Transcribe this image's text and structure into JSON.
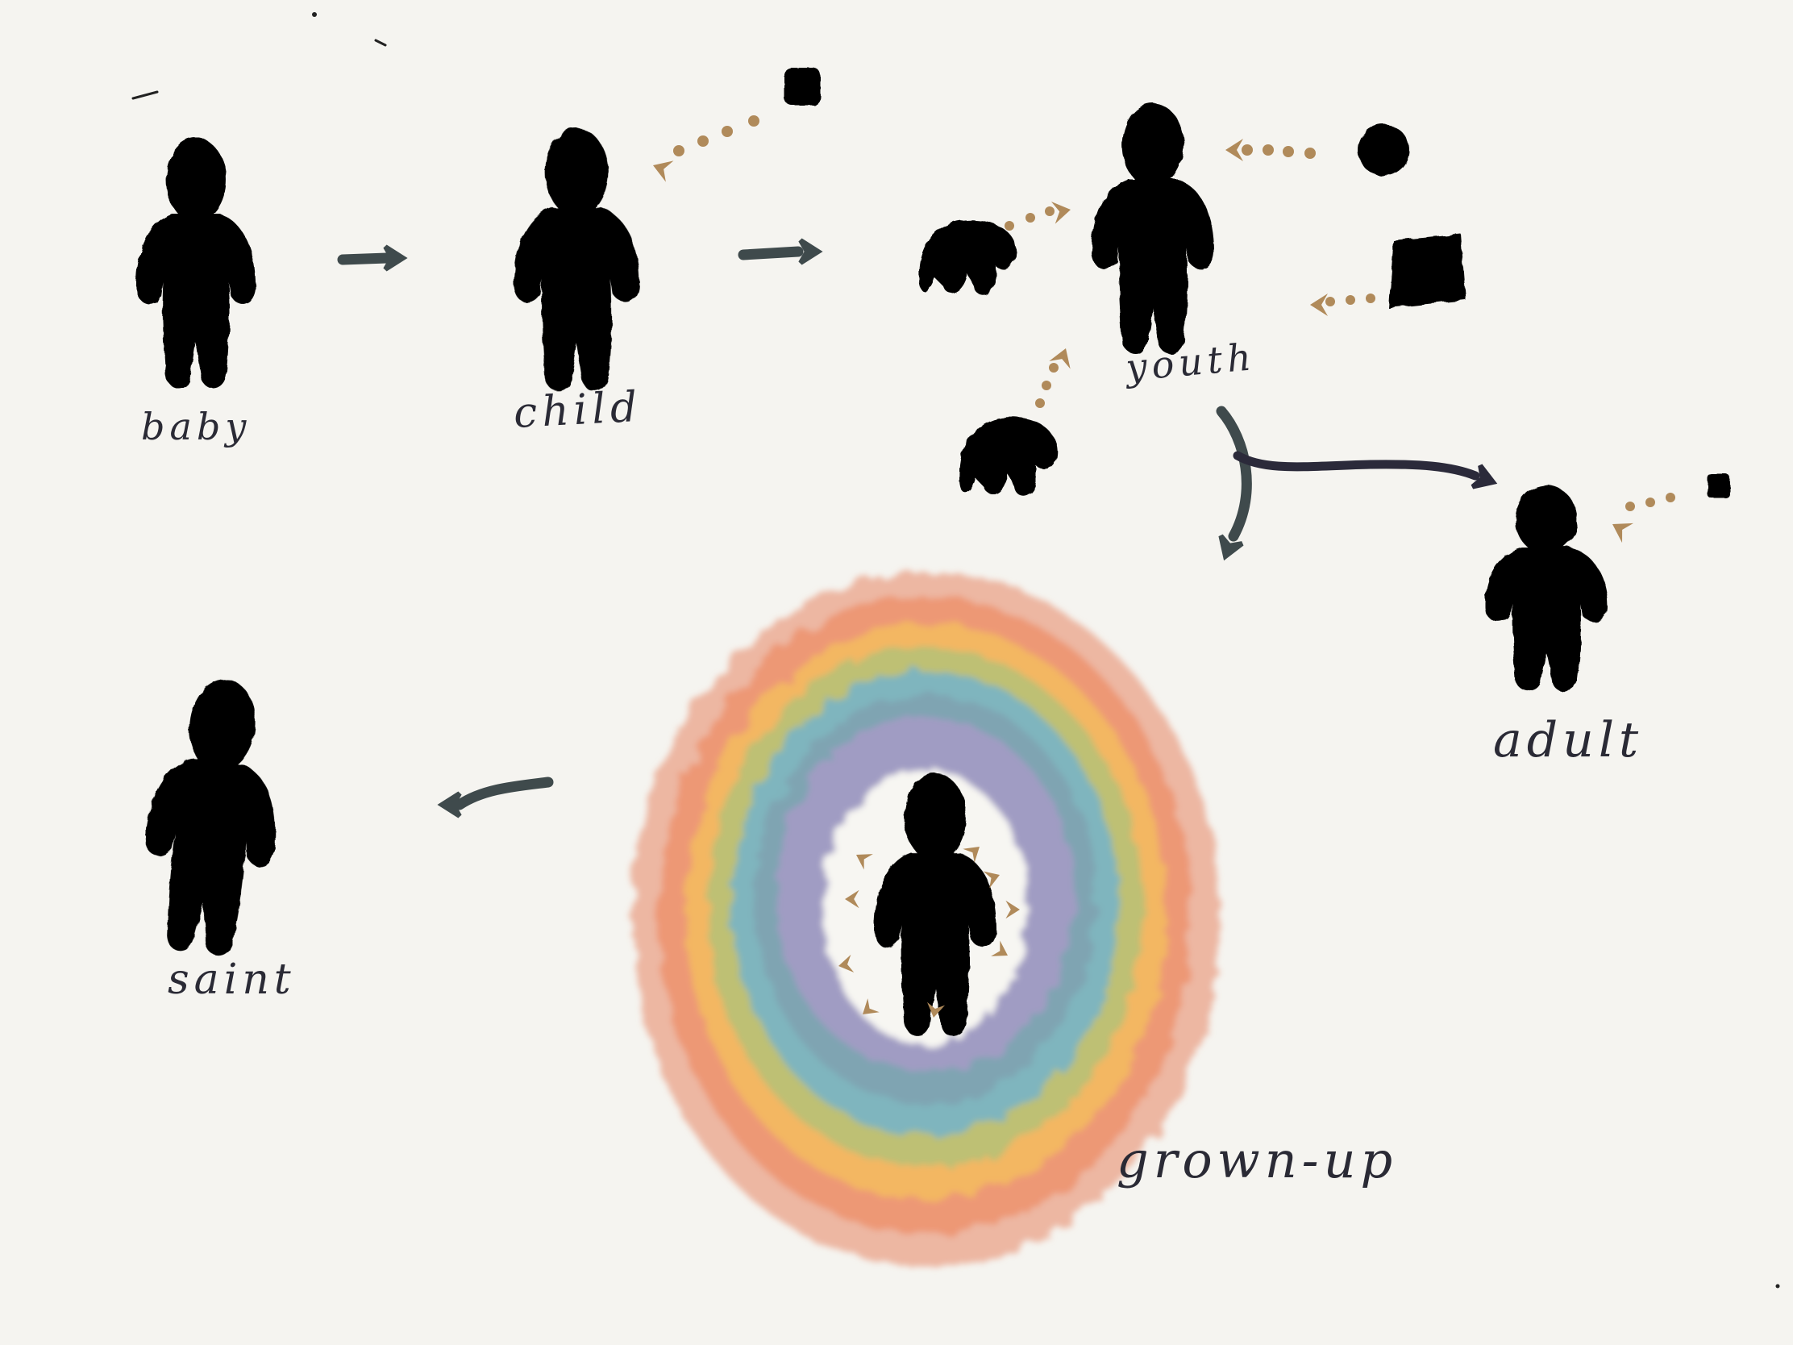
{
  "stages": {
    "baby": "baby",
    "child": "child",
    "youth": "youth",
    "adult": "adult",
    "grown_up": "grown-up",
    "saint": "saint"
  },
  "colors": {
    "background": "#f5f4f0",
    "figure": "#000000",
    "main_arrow": "#3f4a4c",
    "adult_arrow": "#2b2a3a",
    "attention_arrow": "#b08a5a",
    "label": "#2a2a35",
    "rings": [
      "#e8866a",
      "#f0a070",
      "#f4c860",
      "#9fc27a",
      "#6fb0cf",
      "#7f9fb0",
      "#a89ac6"
    ]
  },
  "icons": {
    "person": "person-silhouette-icon",
    "object": "object-blob-icon",
    "attention": "dotted-arrow-icon"
  }
}
